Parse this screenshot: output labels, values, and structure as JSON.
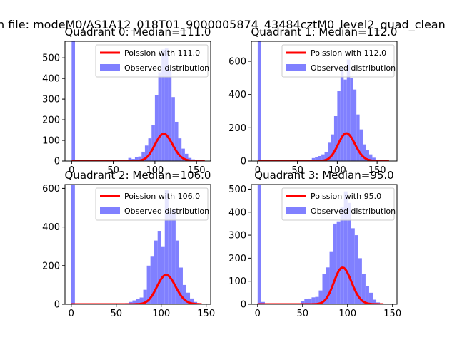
{
  "figure": {
    "suptitle": "n file: modeM0/AS1A12_018T01_9000005874_43484cztM0_level2_quad_clean"
  },
  "colors": {
    "poisson_line": "#ff0000",
    "observed_bars": "#8080ff",
    "axes": "#000000",
    "background": "#ffffff"
  },
  "chart_data": [
    {
      "type": "bar",
      "title": "Quadrant 0: Median=111.0",
      "xlabel": "",
      "ylabel": "",
      "xlim": [
        -8,
        167
      ],
      "ylim": [
        0,
        580
      ],
      "xticks": [
        0,
        50,
        100,
        150
      ],
      "yticks": [
        0,
        100,
        200,
        300,
        400,
        500
      ],
      "legend": {
        "placement": "top-right",
        "entries": [
          "Poission with 111.0",
          "Observed distribution"
        ]
      },
      "series": [
        {
          "name": "Poission with 111.0",
          "kind": "line",
          "lambda": 111.0,
          "x_range": [
            0,
            160
          ]
        },
        {
          "name": "Observed distribution",
          "kind": "histogram",
          "bin_width": 4,
          "bins": [
            [
              0,
              580
            ],
            [
              64,
              6
            ],
            [
              68,
              15
            ],
            [
              72,
              10
            ],
            [
              76,
              18
            ],
            [
              80,
              22
            ],
            [
              84,
              45
            ],
            [
              88,
              75
            ],
            [
              92,
              110
            ],
            [
              96,
              175
            ],
            [
              100,
              320
            ],
            [
              104,
              430
            ],
            [
              108,
              540
            ],
            [
              112,
              545
            ],
            [
              116,
              440
            ],
            [
              120,
              310
            ],
            [
              124,
              190
            ],
            [
              128,
              110
            ],
            [
              132,
              60
            ],
            [
              136,
              35
            ],
            [
              140,
              15
            ],
            [
              144,
              8
            ],
            [
              148,
              4
            ]
          ]
        }
      ]
    },
    {
      "type": "bar",
      "title": "Quadrant 1: Median=112.0",
      "xlabel": "",
      "ylabel": "",
      "xlim": [
        -8,
        175
      ],
      "ylim": [
        0,
        720
      ],
      "xticks": [
        0,
        50,
        100,
        150
      ],
      "yticks": [
        0,
        200,
        400,
        600
      ],
      "legend": {
        "placement": "top-right",
        "entries": [
          "Poission with 112.0",
          "Observed distribution"
        ]
      },
      "series": [
        {
          "name": "Poission with 112.0",
          "kind": "line",
          "lambda": 112.0,
          "x_range": [
            0,
            165
          ]
        },
        {
          "name": "Observed distribution",
          "kind": "histogram",
          "bin_width": 4,
          "bins": [
            [
              0,
              720
            ],
            [
              64,
              8
            ],
            [
              68,
              18
            ],
            [
              72,
              25
            ],
            [
              76,
              30
            ],
            [
              80,
              40
            ],
            [
              84,
              55
            ],
            [
              88,
              110
            ],
            [
              92,
              160
            ],
            [
              96,
              270
            ],
            [
              100,
              420
            ],
            [
              104,
              560
            ],
            [
              108,
              490
            ],
            [
              112,
              610
            ],
            [
              116,
              500
            ],
            [
              120,
              430
            ],
            [
              124,
              280
            ],
            [
              128,
              190
            ],
            [
              132,
              100
            ],
            [
              136,
              65
            ],
            [
              140,
              40
            ],
            [
              144,
              20
            ],
            [
              148,
              8
            ]
          ]
        }
      ]
    },
    {
      "type": "bar",
      "title": "Quadrant 2: Median=106.0",
      "xlabel": "",
      "ylabel": "",
      "xlim": [
        -7,
        155
      ],
      "ylim": [
        0,
        620
      ],
      "xticks": [
        0,
        50,
        100,
        150
      ],
      "yticks": [
        0,
        200,
        400,
        600
      ],
      "legend": {
        "placement": "top-right",
        "entries": [
          "Poission with 106.0",
          "Observed distribution"
        ]
      },
      "series": [
        {
          "name": "Poission with 106.0",
          "kind": "line",
          "lambda": 106.0,
          "x_range": [
            0,
            145
          ]
        },
        {
          "name": "Observed distribution",
          "kind": "histogram",
          "bin_width": 4,
          "bins": [
            [
              0,
              620
            ],
            [
              60,
              6
            ],
            [
              64,
              12
            ],
            [
              68,
              20
            ],
            [
              72,
              28
            ],
            [
              76,
              35
            ],
            [
              80,
              75
            ],
            [
              84,
              200
            ],
            [
              88,
              250
            ],
            [
              92,
              330
            ],
            [
              96,
              380
            ],
            [
              100,
              300
            ],
            [
              104,
              590
            ],
            [
              108,
              480
            ],
            [
              112,
              490
            ],
            [
              116,
              330
            ],
            [
              120,
              190
            ],
            [
              124,
              100
            ],
            [
              128,
              60
            ],
            [
              132,
              30
            ],
            [
              136,
              12
            ],
            [
              140,
              5
            ]
          ]
        }
      ]
    },
    {
      "type": "bar",
      "title": "Quadrant 3: Median=95.0",
      "xlabel": "",
      "ylabel": "",
      "xlim": [
        -7,
        155
      ],
      "ylim": [
        0,
        520
      ],
      "xticks": [
        0,
        50,
        100,
        150
      ],
      "yticks": [
        0,
        100,
        200,
        300,
        400,
        500
      ],
      "legend": {
        "placement": "top-right",
        "entries": [
          "Poission with 95.0",
          "Observed distribution"
        ]
      },
      "series": [
        {
          "name": "Poission with 95.0",
          "kind": "line",
          "lambda": 95.0,
          "x_range": [
            0,
            140
          ]
        },
        {
          "name": "Observed distribution",
          "kind": "histogram",
          "bin_width": 4,
          "bins": [
            [
              0,
              520
            ],
            [
              4,
              10
            ],
            [
              48,
              15
            ],
            [
              52,
              22
            ],
            [
              56,
              25
            ],
            [
              60,
              30
            ],
            [
              64,
              32
            ],
            [
              68,
              60
            ],
            [
              72,
              130
            ],
            [
              76,
              160
            ],
            [
              80,
              230
            ],
            [
              84,
              350
            ],
            [
              88,
              360
            ],
            [
              92,
              420
            ],
            [
              96,
              490
            ],
            [
              100,
              440
            ],
            [
              104,
              330
            ],
            [
              108,
              300
            ],
            [
              112,
              200
            ],
            [
              116,
              130
            ],
            [
              120,
              80
            ],
            [
              124,
              50
            ],
            [
              128,
              20
            ],
            [
              132,
              8
            ]
          ]
        }
      ]
    }
  ]
}
